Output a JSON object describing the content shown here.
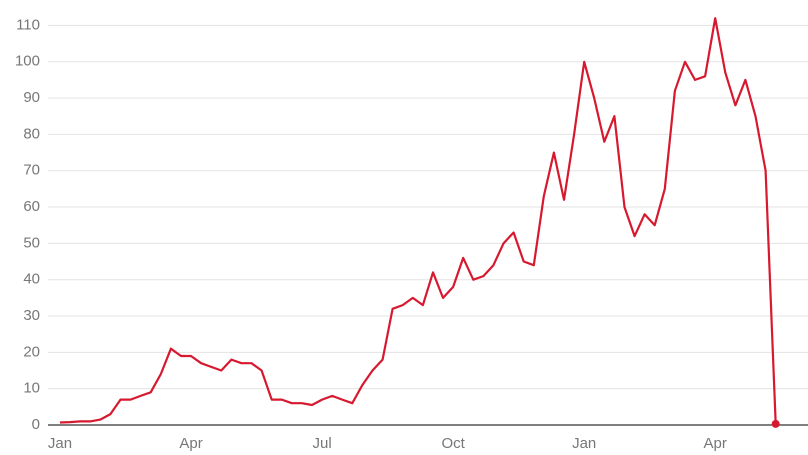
{
  "chart_data": {
    "type": "line",
    "categories": [
      "Jan",
      null,
      null,
      null,
      null,
      null,
      null,
      null,
      null,
      null,
      null,
      null,
      null,
      "Apr",
      null,
      null,
      null,
      null,
      null,
      null,
      null,
      null,
      null,
      null,
      null,
      null,
      "Jul",
      null,
      null,
      null,
      null,
      null,
      null,
      null,
      null,
      null,
      null,
      null,
      null,
      "Oct",
      null,
      null,
      null,
      null,
      null,
      null,
      null,
      null,
      null,
      null,
      null,
      null,
      "Jan",
      null,
      null,
      null,
      null,
      null,
      null,
      null,
      null,
      null,
      null,
      null,
      null,
      "Apr",
      null,
      null,
      null,
      null,
      null,
      null
    ],
    "series": [
      {
        "color": "#d7192f",
        "values": [
          0.7,
          0.8,
          1,
          1,
          1.5,
          3,
          7,
          7,
          8,
          9,
          14,
          21,
          19,
          19,
          17,
          16,
          15,
          18,
          17,
          17,
          15,
          7,
          7,
          6,
          6,
          5.5,
          7,
          8,
          7,
          6,
          11,
          15,
          18,
          32,
          33,
          35,
          33,
          42,
          35,
          38,
          46,
          40,
          41,
          44,
          50,
          53,
          45,
          44,
          63,
          75,
          62,
          80,
          100,
          90,
          78,
          85,
          60,
          52,
          58,
          55,
          65,
          92,
          100,
          95,
          96,
          112,
          97,
          88,
          95,
          85,
          70,
          0.3
        ]
      }
    ],
    "ylim": [
      0,
      117
    ],
    "yticks": [
      0,
      10,
      20,
      30,
      40,
      50,
      60,
      70,
      80,
      90,
      100,
      110
    ],
    "grid": true
  }
}
